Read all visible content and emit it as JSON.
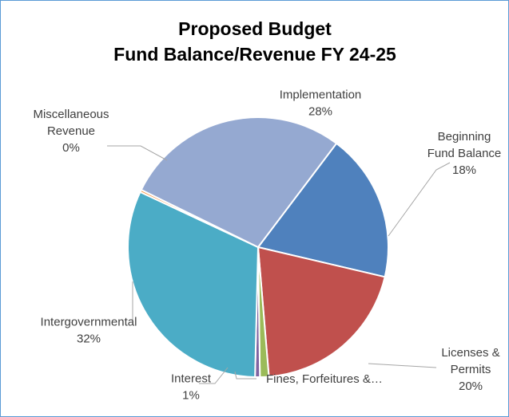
{
  "chart_data": {
    "type": "pie",
    "title": [
      "Proposed Budget",
      "Fund Balance/Revenue FY 24-25"
    ],
    "slices": [
      {
        "name": "Beginning Fund Balance",
        "label_lines": [
          "Beginning",
          "Fund Balance"
        ],
        "percent_label": "18%",
        "value": 18.4,
        "color": "#4f81bd"
      },
      {
        "name": "Licenses & Permits",
        "label_lines": [
          "Licenses &",
          "Permits"
        ],
        "percent_label": "20%",
        "value": 20.0,
        "color": "#c0504d"
      },
      {
        "name": "Fines, Forfeitures &...",
        "label_lines": [
          "Fines, Forfeitures &…"
        ],
        "percent_label": "",
        "value": 1.1,
        "color": "#9bbb59"
      },
      {
        "name": "Interest",
        "label_lines": [
          "Interest"
        ],
        "percent_label": "1%",
        "value": 0.6,
        "color": "#8064a2"
      },
      {
        "name": "Intergovernmental",
        "label_lines": [
          "Intergovernmental"
        ],
        "percent_label": "32%",
        "value": 31.6,
        "color": "#4bacc6"
      },
      {
        "name": "Miscellaneous Revenue",
        "label_lines": [
          "Miscellaneous",
          "Revenue"
        ],
        "percent_label": "0%",
        "value": 0.3,
        "color": "#f79646"
      },
      {
        "name": "Implementation",
        "label_lines": [
          "Implementation"
        ],
        "percent_label": "28%",
        "value": 28.0,
        "color": "#95a9d1"
      }
    ],
    "start_direction": "top-right, clockwise",
    "legend": "none (labels with leader lines)"
  }
}
